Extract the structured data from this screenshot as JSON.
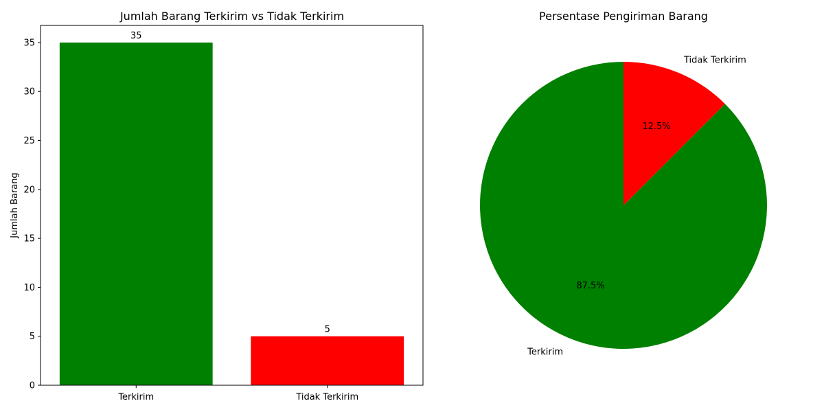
{
  "chart_data": [
    {
      "type": "bar",
      "title": "Jumlah Barang Terkirim vs Tidak Terkirim",
      "xlabel": "",
      "ylabel": "Jumlah Barang",
      "categories": [
        "Terkirim",
        "Tidak Terkirim"
      ],
      "values": [
        35,
        5
      ],
      "value_labels": [
        "35",
        "5"
      ],
      "colors": [
        "#008000",
        "#ff0000"
      ],
      "ylim": [
        0,
        36.75
      ],
      "yticks": [
        0,
        5,
        10,
        15,
        20,
        25,
        30,
        35
      ],
      "grid": false
    },
    {
      "type": "pie",
      "title": "Persentase Pengiriman Barang",
      "labels": [
        "Terkirim",
        "Tidak Terkirim"
      ],
      "values": [
        35,
        5
      ],
      "pct_labels": [
        "87.5%",
        "12.5%"
      ],
      "colors": [
        "#008000",
        "#ff0000"
      ],
      "start_angle": 90,
      "direction": "counterclockwise"
    }
  ]
}
